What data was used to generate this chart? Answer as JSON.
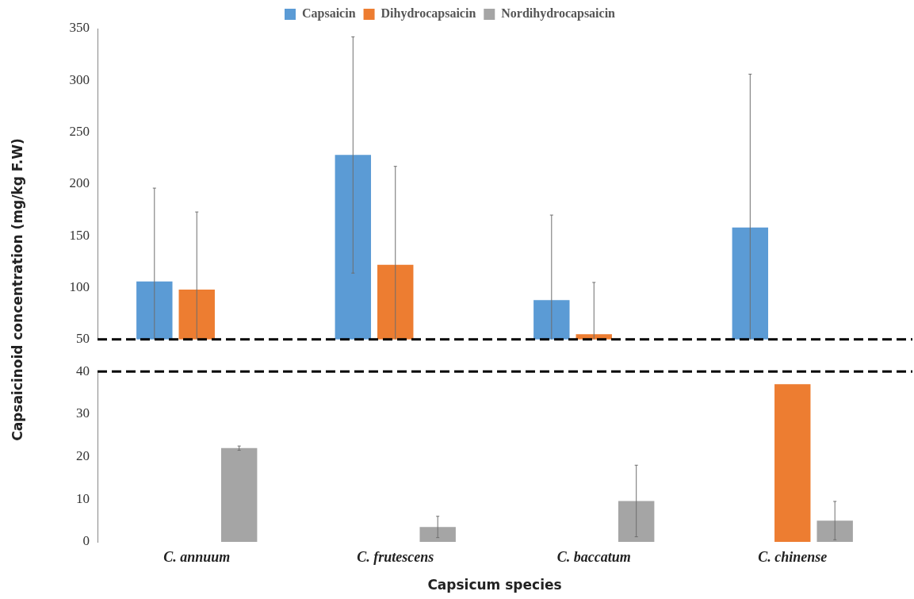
{
  "chart_data": [
    {
      "type": "bar",
      "ylabel": "Capsaicinoid concentration (mg/kg F.W)",
      "categories": [
        null,
        null,
        null,
        null
      ],
      "series": [
        {
          "name": "Capsaicin",
          "color": "#5b9bd5",
          "values": [
            106,
            228,
            88,
            158
          ],
          "errors": [
            90,
            114,
            82,
            148
          ]
        },
        {
          "name": "Dihydrocapsaicin",
          "color": "#ed7d31",
          "values": [
            98,
            122,
            55,
            null
          ],
          "errors": [
            75,
            95,
            50,
            null
          ]
        },
        {
          "name": "Nordihydrocapsaicin",
          "color": "#a5a5a5",
          "values": [
            null,
            null,
            null,
            null
          ]
        }
      ],
      "ylim": [
        50,
        350
      ],
      "yticks": [
        50,
        100,
        150,
        200,
        250,
        300,
        350
      ],
      "ref_lines": [
        {
          "axis": "y",
          "value": 50,
          "color": "#000000",
          "line_style": "dashed"
        }
      ],
      "legend": "top",
      "tick_labels": "y"
    },
    {
      "type": "bar",
      "xlabel": "Capsicum species",
      "categories": [
        "C. annuum",
        "C. frutescens",
        "C. baccatum",
        "C. chinense"
      ],
      "series": [
        {
          "color": "#5b9bd5",
          "values": [
            null,
            null,
            null,
            null
          ]
        },
        {
          "color": "#ed7d31",
          "values": [
            null,
            null,
            null,
            37
          ]
        },
        {
          "color": "#a5a5a5",
          "values": [
            22,
            3.5,
            9.6,
            5
          ],
          "errors": [
            0.5,
            2.5,
            8.4,
            4.5
          ]
        }
      ],
      "ylim": [
        0,
        40
      ],
      "yticks": [
        0,
        10,
        20,
        30,
        40
      ],
      "ref_lines": [
        {
          "axis": "y",
          "value": 40,
          "color": "#000000",
          "line_style": "dashed"
        }
      ]
    }
  ]
}
